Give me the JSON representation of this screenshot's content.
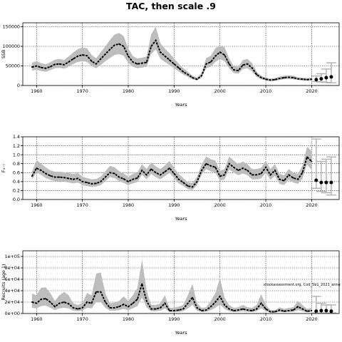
{
  "title": "TAC, then scale .9",
  "note": "stockassessment.org, Cod_5b1_2021_anne",
  "colors": {
    "band": "#bdbdbd",
    "line": "#000000",
    "forecast_bar": "#b0b0b0",
    "grid": "#000000"
  },
  "chart_data": [
    {
      "type": "line",
      "ylabel": "SSB",
      "xlabel": "Years",
      "xlim": [
        1957,
        2026
      ],
      "ylim": [
        0,
        160000
      ],
      "x_ticks": [
        1960,
        1970,
        1980,
        1990,
        2000,
        2010,
        2020
      ],
      "y_ticks": [
        0,
        50000,
        100000,
        150000
      ],
      "y_tick_labels": [
        "0",
        "50000",
        "100000",
        "150000"
      ],
      "grid": true,
      "series": [
        {
          "x": [
            1959,
            1960,
            1961,
            1962,
            1963,
            1964,
            1965,
            1966,
            1967,
            1968,
            1969,
            1970,
            1971,
            1972,
            1973,
            1974,
            1975,
            1976,
            1977,
            1978,
            1979,
            1980,
            1981,
            1982,
            1983,
            1984,
            1985,
            1986,
            1987,
            1988,
            1989,
            1990,
            1991,
            1992,
            1993,
            1994,
            1995,
            1996,
            1997,
            1998,
            1999,
            2000,
            2001,
            2002,
            2003,
            2004,
            2005,
            2006,
            2007,
            2008,
            2009,
            2010,
            2011,
            2012,
            2013,
            2014,
            2015,
            2016,
            2017,
            2018,
            2019,
            2020
          ],
          "y": [
            47000,
            50000,
            46000,
            44000,
            48000,
            54000,
            55000,
            53000,
            60000,
            68000,
            75000,
            78000,
            76000,
            62000,
            55000,
            68000,
            80000,
            92000,
            103000,
            106000,
            100000,
            75000,
            60000,
            55000,
            57000,
            59000,
            100000,
            115000,
            85000,
            75000,
            65000,
            55000,
            45000,
            35000,
            28000,
            20000,
            16000,
            25000,
            55000,
            60000,
            75000,
            85000,
            78000,
            55000,
            40000,
            38000,
            52000,
            55000,
            45000,
            28000,
            20000,
            16000,
            14000,
            15000,
            18000,
            20000,
            21000,
            20000,
            17000,
            16000,
            15000,
            16000
          ],
          "lower": [
            38000,
            40000,
            37000,
            35000,
            39000,
            44000,
            45000,
            43000,
            48000,
            55000,
            60000,
            62000,
            60000,
            50000,
            44000,
            52000,
            62000,
            70000,
            78000,
            80000,
            76000,
            58000,
            48000,
            44000,
            46000,
            48000,
            80000,
            92000,
            68000,
            60000,
            52000,
            44000,
            36000,
            28000,
            22000,
            16000,
            13000,
            20000,
            44000,
            48000,
            60000,
            68000,
            62000,
            44000,
            32000,
            30000,
            42000,
            44000,
            36000,
            22000,
            16000,
            13000,
            11000,
            12000,
            14000,
            16000,
            17000,
            16000,
            14000,
            13000,
            12000,
            13000
          ],
          "upper": [
            58000,
            62000,
            57000,
            54000,
            59000,
            66000,
            68000,
            65000,
            74000,
            84000,
            93000,
            97000,
            95000,
            78000,
            69000,
            85000,
            100000,
            116000,
            130000,
            134000,
            126000,
            95000,
            75000,
            69000,
            71000,
            74000,
            130000,
            150000,
            108000,
            94000,
            82000,
            69000,
            56000,
            44000,
            35000,
            25000,
            20000,
            32000,
            70000,
            76000,
            95000,
            101000,
            98000,
            69000,
            50000,
            48000,
            65000,
            68000,
            57000,
            35000,
            25000,
            20000,
            18000,
            19000,
            23000,
            25000,
            26000,
            25000,
            21000,
            20000,
            19000,
            20000
          ]
        }
      ],
      "forecast": {
        "x": [
          2021,
          2022,
          2023,
          2024
        ],
        "y": [
          15000,
          17000,
          20000,
          22000
        ],
        "lower": [
          10000,
          9000,
          8000,
          7000
        ],
        "upper": [
          24000,
          30000,
          42000,
          58000
        ]
      }
    },
    {
      "type": "line",
      "ylabel": "F₃₋₇",
      "xlabel": "Years",
      "xlim": [
        1957,
        2026
      ],
      "ylim": [
        0,
        1.4
      ],
      "x_ticks": [
        1960,
        1970,
        1980,
        1990,
        2000,
        2010,
        2020
      ],
      "y_ticks": [
        0,
        0.2,
        0.4,
        0.6,
        0.8,
        1.0,
        1.2,
        1.4
      ],
      "y_tick_labels": [
        "0.0",
        "0.2",
        "0.4",
        "0.6",
        "0.8",
        "1.0",
        "1.2",
        "1.4"
      ],
      "grid": true,
      "series": [
        {
          "x": [
            1959,
            1960,
            1961,
            1962,
            1963,
            1964,
            1965,
            1966,
            1967,
            1968,
            1969,
            1970,
            1971,
            1972,
            1973,
            1974,
            1975,
            1976,
            1977,
            1978,
            1979,
            1980,
            1981,
            1982,
            1983,
            1984,
            1985,
            1986,
            1987,
            1988,
            1989,
            1990,
            1991,
            1992,
            1993,
            1994,
            1995,
            1996,
            1997,
            1998,
            1999,
            2000,
            2001,
            2002,
            2003,
            2004,
            2005,
            2006,
            2007,
            2008,
            2009,
            2010,
            2011,
            2012,
            2013,
            2014,
            2015,
            2016,
            2017,
            2018,
            2019,
            2020
          ],
          "y": [
            0.52,
            0.7,
            0.65,
            0.58,
            0.53,
            0.5,
            0.5,
            0.49,
            0.47,
            0.45,
            0.47,
            0.4,
            0.38,
            0.35,
            0.36,
            0.4,
            0.5,
            0.6,
            0.58,
            0.5,
            0.46,
            0.4,
            0.45,
            0.48,
            0.65,
            0.55,
            0.68,
            0.6,
            0.55,
            0.62,
            0.7,
            0.58,
            0.45,
            0.38,
            0.3,
            0.28,
            0.4,
            0.65,
            0.8,
            0.75,
            0.72,
            0.52,
            0.55,
            0.8,
            0.72,
            0.65,
            0.7,
            0.65,
            0.55,
            0.55,
            0.58,
            0.72,
            0.55,
            0.65,
            0.45,
            0.42,
            0.55,
            0.48,
            0.45,
            0.6,
            0.95,
            0.85
          ],
          "lower": [
            0.45,
            0.6,
            0.55,
            0.48,
            0.44,
            0.41,
            0.41,
            0.4,
            0.38,
            0.36,
            0.38,
            0.32,
            0.3,
            0.28,
            0.29,
            0.32,
            0.41,
            0.5,
            0.48,
            0.41,
            0.37,
            0.32,
            0.36,
            0.39,
            0.55,
            0.45,
            0.57,
            0.5,
            0.45,
            0.52,
            0.59,
            0.48,
            0.36,
            0.3,
            0.23,
            0.21,
            0.32,
            0.55,
            0.68,
            0.63,
            0.6,
            0.42,
            0.45,
            0.67,
            0.6,
            0.54,
            0.58,
            0.54,
            0.45,
            0.45,
            0.47,
            0.6,
            0.44,
            0.53,
            0.35,
            0.32,
            0.44,
            0.38,
            0.35,
            0.47,
            0.78,
            0.66
          ],
          "upper": [
            0.62,
            0.88,
            0.8,
            0.72,
            0.65,
            0.62,
            0.62,
            0.61,
            0.59,
            0.57,
            0.59,
            0.51,
            0.48,
            0.45,
            0.46,
            0.51,
            0.63,
            0.75,
            0.72,
            0.63,
            0.58,
            0.51,
            0.57,
            0.6,
            0.79,
            0.68,
            0.83,
            0.74,
            0.68,
            0.76,
            0.86,
            0.71,
            0.57,
            0.48,
            0.39,
            0.37,
            0.51,
            0.78,
            0.96,
            0.9,
            0.87,
            0.64,
            0.68,
            0.96,
            0.87,
            0.79,
            0.85,
            0.79,
            0.68,
            0.68,
            0.71,
            0.87,
            0.68,
            0.79,
            0.57,
            0.54,
            0.68,
            0.6,
            0.57,
            0.76,
            1.18,
            1.08
          ]
        }
      ],
      "forecast": {
        "x": [
          2021,
          2022,
          2023,
          2024
        ],
        "y": [
          0.43,
          0.38,
          0.38,
          0.38
        ],
        "lower": [
          0.25,
          0.18,
          0.15,
          0.1
        ],
        "upper": [
          1.35,
          0.85,
          0.9,
          0.95
        ]
      }
    },
    {
      "type": "line",
      "ylabel": "Recruits (age 1)",
      "xlabel": "Years",
      "xlim": [
        1957,
        2026
      ],
      "ylim": [
        0,
        110000
      ],
      "x_ticks": [
        1960,
        1970,
        1980,
        1990,
        2000,
        2010,
        2020
      ],
      "y_ticks": [
        0,
        20000,
        40000,
        60000,
        80000,
        100000
      ],
      "y_tick_labels": [
        "0e+00",
        "2e+04",
        "4e+04",
        "6e+04",
        "8e+04",
        "1e+05"
      ],
      "grid": true,
      "series": [
        {
          "x": [
            1959,
            1960,
            1961,
            1962,
            1963,
            1964,
            1965,
            1966,
            1967,
            1968,
            1969,
            1970,
            1971,
            1972,
            1973,
            1974,
            1975,
            1976,
            1977,
            1978,
            1979,
            1980,
            1981,
            1982,
            1983,
            1984,
            1985,
            1986,
            1987,
            1988,
            1989,
            1990,
            1991,
            1992,
            1993,
            1994,
            1995,
            1996,
            1997,
            1998,
            1999,
            2000,
            2001,
            2002,
            2003,
            2004,
            2005,
            2006,
            2007,
            2008,
            2009,
            2010,
            2011,
            2012,
            2013,
            2014,
            2015,
            2016,
            2017,
            2018,
            2019,
            2020
          ],
          "y": [
            20000,
            18000,
            25000,
            26000,
            20000,
            12000,
            18000,
            20000,
            17000,
            10000,
            8000,
            10000,
            20000,
            18000,
            38000,
            38000,
            20000,
            10000,
            10000,
            12000,
            16000,
            12000,
            18000,
            25000,
            52000,
            22000,
            8000,
            8000,
            10000,
            18000,
            5000,
            5000,
            6000,
            8000,
            18000,
            28000,
            10000,
            5000,
            6000,
            12000,
            20000,
            30000,
            15000,
            8000,
            5000,
            6000,
            8000,
            6000,
            5000,
            8000,
            18000,
            8000,
            3000,
            3000,
            6000,
            4000,
            5000,
            6000,
            12000,
            8000,
            4000,
            5000
          ],
          "lower": [
            10000,
            9000,
            13000,
            14000,
            10000,
            6000,
            9000,
            10000,
            9000,
            5000,
            4000,
            5000,
            10000,
            9000,
            20000,
            20000,
            10000,
            5000,
            5000,
            6000,
            8000,
            6000,
            9000,
            13000,
            28000,
            11000,
            4000,
            4000,
            5000,
            9000,
            2500,
            2500,
            3000,
            4000,
            9000,
            15000,
            5000,
            2500,
            3000,
            6000,
            10000,
            16000,
            8000,
            4000,
            2500,
            3000,
            4000,
            3000,
            2500,
            4000,
            9000,
            4000,
            1500,
            1500,
            3000,
            2000,
            2500,
            3000,
            6000,
            4000,
            2000,
            2500
          ],
          "upper": [
            35000,
            32000,
            45000,
            46000,
            36000,
            22000,
            32000,
            38000,
            32000,
            18000,
            15000,
            18000,
            36000,
            32000,
            70000,
            72000,
            36000,
            18000,
            19000,
            22000,
            30000,
            22000,
            32000,
            45000,
            95000,
            40000,
            15000,
            15000,
            18000,
            32000,
            10000,
            10000,
            12000,
            15000,
            32000,
            52000,
            18000,
            10000,
            11000,
            22000,
            36000,
            62000,
            28000,
            15000,
            10000,
            11000,
            15000,
            11000,
            10000,
            15000,
            34000,
            15000,
            6000,
            6000,
            11000,
            8000,
            10000,
            11000,
            22000,
            15000,
            8000,
            10000
          ]
        }
      ],
      "forecast": {
        "x": [
          2021,
          2022,
          2023,
          2024
        ],
        "y": [
          4000,
          5000,
          5000,
          4000
        ],
        "lower": [
          1000,
          1000,
          1000,
          1000
        ],
        "upper": [
          30000,
          18000,
          15000,
          15000
        ]
      }
    }
  ]
}
